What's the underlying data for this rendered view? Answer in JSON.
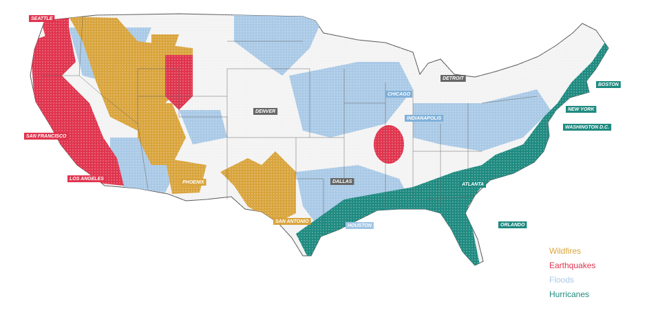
{
  "cities": [
    {
      "label": "SEATTLE",
      "color": "#e0344e"
    },
    {
      "label": "SAN FRANCISCO",
      "color": "#e0344e"
    },
    {
      "label": "LOS ANGELES",
      "color": "#e0344e"
    },
    {
      "label": "PHOENIX",
      "color": "#d9a43c"
    },
    {
      "label": "SAN ANTONIO",
      "color": "#d9a43c"
    },
    {
      "label": "DENVER",
      "color": "#666666"
    },
    {
      "label": "DALLAS",
      "color": "#666666"
    },
    {
      "label": "HOUSTON",
      "color": "#9fc4e4"
    },
    {
      "label": "CHICAGO",
      "color": "#7fb0da"
    },
    {
      "label": "INDIANAPOLIS",
      "color": "#7fb0da"
    },
    {
      "label": "DETROIT",
      "color": "#666666"
    },
    {
      "label": "ATLANTA",
      "color": "#1e8a80"
    },
    {
      "label": "ORLANDO",
      "color": "#1e8a80"
    },
    {
      "label": "BOSTON",
      "color": "#1e8a80"
    },
    {
      "label": "NEW YORK",
      "color": "#1e8a80"
    },
    {
      "label": "WASHINGTON D.C.",
      "color": "#1e8a80"
    }
  ],
  "legend": [
    {
      "label": "Wildfires",
      "color": "#d9a43c"
    },
    {
      "label": "Earthquakes",
      "color": "#e0344e"
    },
    {
      "label": "Floods",
      "color": "#a9c9e6"
    },
    {
      "label": "Hurricanes",
      "color": "#1e8a80"
    }
  ]
}
